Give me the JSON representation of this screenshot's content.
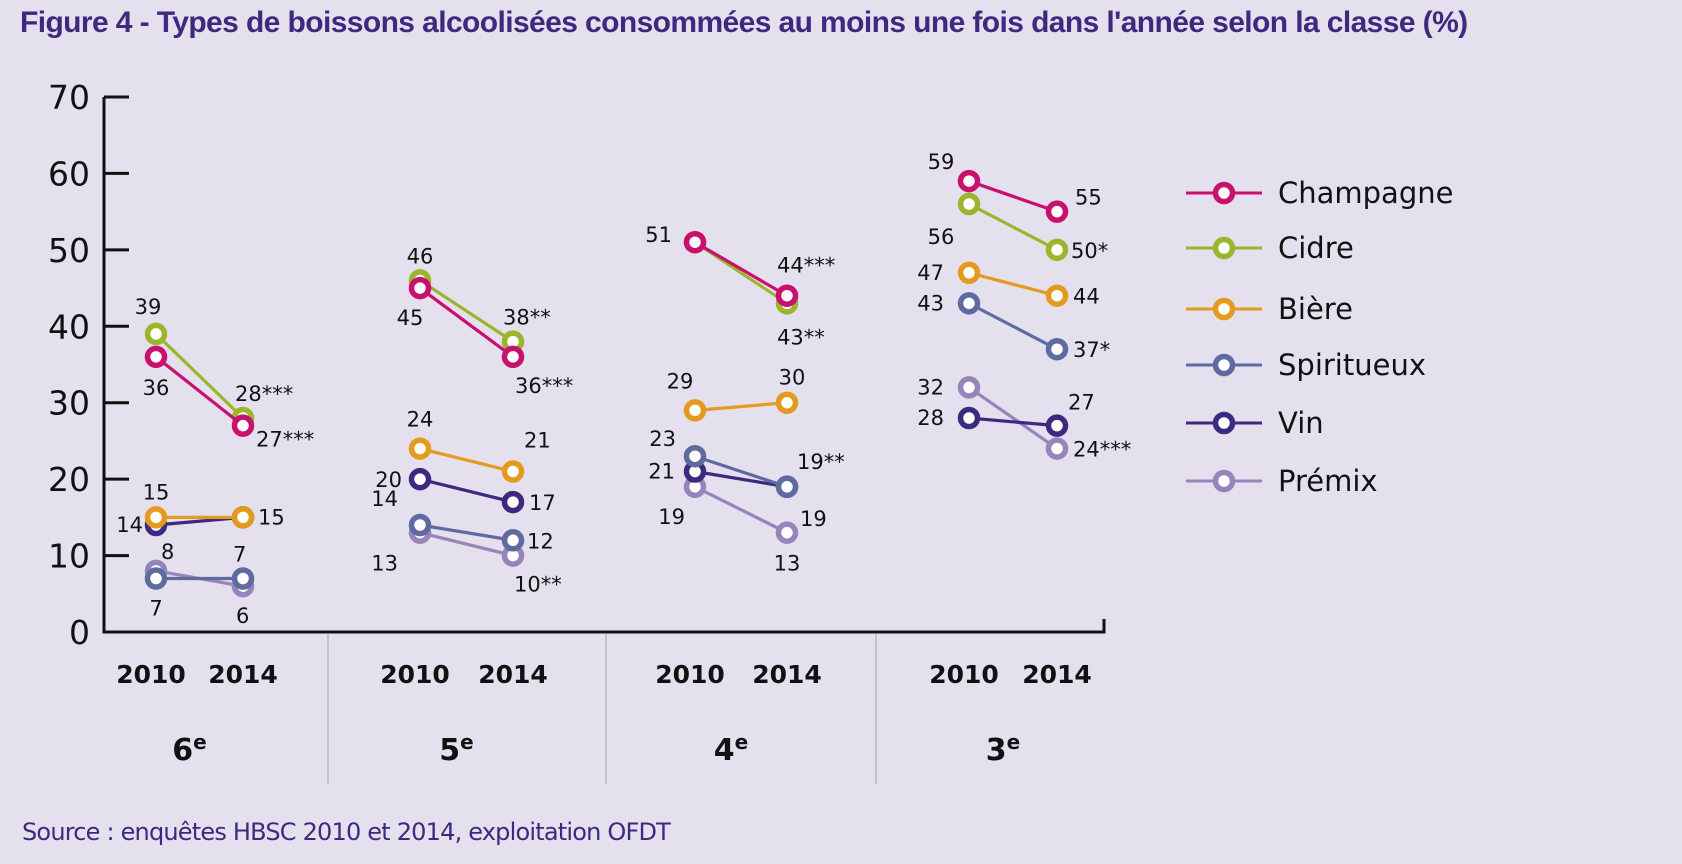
{
  "title": "Figure 4 - Types de boissons alcoolisées consommées au moins une fois dans l'année selon la classe (%)",
  "source": "Source : enquêtes HBSC 2010 et 2014, exploitation OFDT",
  "chart_data": {
    "type": "line",
    "title": "Figure 4 - Types de boissons alcoolisées consommées au moins une fois dans l'année selon la classe (%)",
    "xlabel": "",
    "ylabel": "%",
    "ylim": [
      0,
      70
    ],
    "yticks": [
      0,
      10,
      20,
      30,
      40,
      50,
      60,
      70
    ],
    "grid": false,
    "legend_position": "right",
    "years": [
      "2010",
      "2014"
    ],
    "groups": [
      {
        "label": "6",
        "sup": "e"
      },
      {
        "label": "5",
        "sup": "e"
      },
      {
        "label": "4",
        "sup": "e"
      },
      {
        "label": "3",
        "sup": "e"
      }
    ],
    "series": [
      {
        "name": "Champagne",
        "color": "#c8106e",
        "values": [
          [
            36,
            27
          ],
          [
            45,
            36
          ],
          [
            51,
            44
          ],
          [
            59,
            55
          ]
        ],
        "labels": [
          [
            "36",
            "27***"
          ],
          [
            "45",
            "36***"
          ],
          [
            "",
            "44***"
          ],
          [
            "59",
            "55"
          ]
        ]
      },
      {
        "name": "Cidre",
        "color": "#9bb52c",
        "values": [
          [
            39,
            28
          ],
          [
            46,
            38
          ],
          [
            51,
            43
          ],
          [
            56,
            50
          ]
        ],
        "labels": [
          [
            "39",
            "28***"
          ],
          [
            "46",
            "38**"
          ],
          [
            "51",
            "43**"
          ],
          [
            "56",
            "50*"
          ]
        ]
      },
      {
        "name": "Bière",
        "color": "#e49a1e",
        "values": [
          [
            15,
            15
          ],
          [
            24,
            21
          ],
          [
            29,
            30
          ],
          [
            47,
            44
          ]
        ],
        "labels": [
          [
            "15",
            ""
          ],
          [
            "24",
            "21"
          ],
          [
            "29",
            "30"
          ],
          [
            "47",
            "44"
          ]
        ]
      },
      {
        "name": "Spiritueux",
        "color": "#5e6aa0",
        "values": [
          [
            7,
            7
          ],
          [
            14,
            12
          ],
          [
            23,
            19
          ],
          [
            43,
            37
          ]
        ],
        "labels": [
          [
            "7",
            "7"
          ],
          [
            "14",
            "12"
          ],
          [
            "23",
            "19"
          ],
          [
            "43",
            "37*"
          ]
        ]
      },
      {
        "name": "Vin",
        "color": "#3b2a7e",
        "values": [
          [
            14,
            15
          ],
          [
            20,
            17
          ],
          [
            21,
            19
          ],
          [
            28,
            27
          ]
        ],
        "labels": [
          [
            "14",
            "15"
          ],
          [
            "20",
            "17"
          ],
          [
            "21",
            "19**"
          ],
          [
            "28",
            "27"
          ]
        ]
      },
      {
        "name": "Prémix",
        "color": "#9585b8",
        "values": [
          [
            8,
            6
          ],
          [
            13,
            10
          ],
          [
            19,
            13
          ],
          [
            32,
            24
          ]
        ],
        "labels": [
          [
            "8",
            "6"
          ],
          [
            "13",
            "10**"
          ],
          [
            "19",
            "13"
          ],
          [
            "32",
            "24***"
          ]
        ]
      }
    ]
  }
}
